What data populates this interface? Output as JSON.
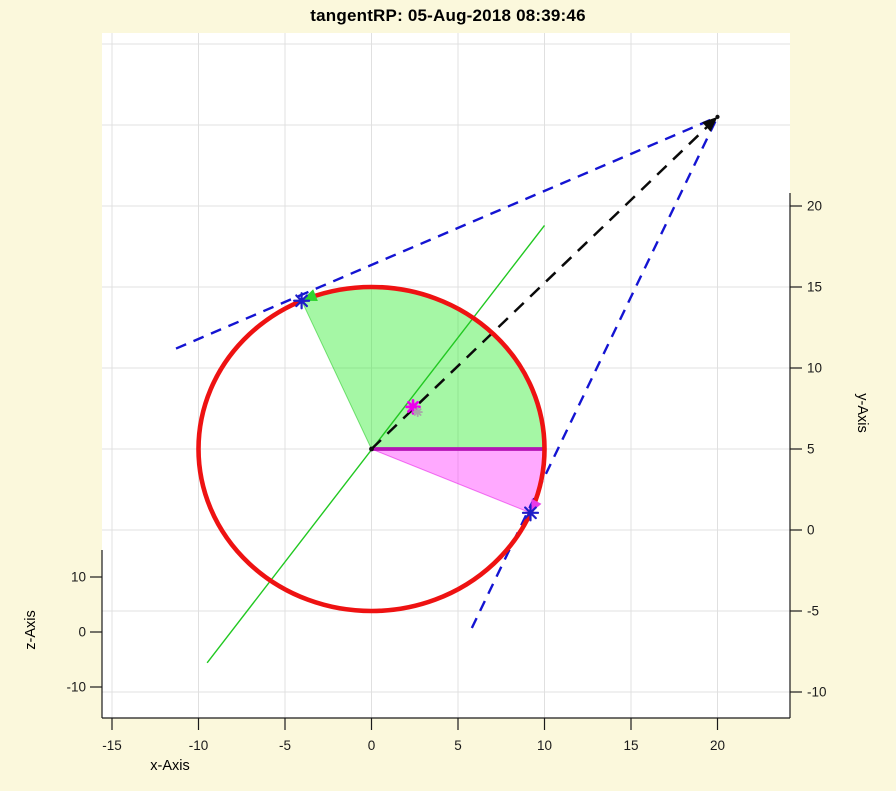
{
  "title": "tangentRP: 05-Aug-2018 08:39:46",
  "axis_labels": {
    "x": "x-Axis",
    "y": "y-Axis",
    "z": "z-Axis"
  },
  "colors": {
    "background": "#FBF8DC",
    "plot_bg": "#FFFFFF",
    "grid": "#E0E0E0",
    "axis": "#1A1A1A",
    "text": "#1A1A1A"
  },
  "chart_data": {
    "type": "line",
    "title": "tangentRP: 05-Aug-2018 08:39:46",
    "axes": {
      "x": {
        "label": "x-Axis",
        "tick_values": [
          -15,
          -10,
          -5,
          0,
          5,
          10,
          15,
          20
        ]
      },
      "y": {
        "label": "y-Axis",
        "tick_values": [
          -10,
          -5,
          0,
          5,
          10,
          15,
          20
        ],
        "grid_values": [
          -10,
          -5,
          0,
          5,
          10,
          15,
          20,
          25,
          30
        ]
      },
      "z": {
        "label": "z-Axis",
        "tick_values": [
          -10,
          0,
          10
        ]
      }
    },
    "circle": {
      "center": [
        0,
        5
      ],
      "radius": 10,
      "color": "#EE1212",
      "width": 4.6
    },
    "external_point": [
      20,
      25.5
    ],
    "tangent_points": [
      [
        -4.04,
        14.15
      ],
      [
        9.19,
        1.06
      ]
    ],
    "sectors": [
      {
        "name": "green-sector",
        "start_angle": 0,
        "end_angle": 113.8,
        "sweep": 0,
        "fill": "rgba(40,235,40,0.42)",
        "stroke": "rgba(30,200,30,0.55)"
      },
      {
        "name": "magenta-sector",
        "start_angle": 0,
        "end_angle": -23.2,
        "sweep": 1,
        "fill": "rgba(255,30,255,0.38)",
        "stroke": "rgba(230,20,230,0.55)"
      }
    ],
    "lines": [
      {
        "name": "green-diameter-line",
        "pts": [
          [
            -9.5,
            -8.2
          ],
          [
            10,
            18.8
          ]
        ],
        "color": "#21C821",
        "width": 1.4
      },
      {
        "name": "east-radius-line",
        "pts": [
          [
            0,
            5
          ],
          [
            10,
            5
          ]
        ],
        "color": "#B414B4",
        "width": 3.8
      },
      {
        "name": "tangent-line-upper",
        "pts": [
          [
            -11.3,
            11.2
          ],
          [
            20,
            25.5
          ]
        ],
        "color": "#1414D2",
        "width": 2.4,
        "dash": "11 8"
      },
      {
        "name": "tangent-line-lower",
        "pts": [
          [
            5.8,
            -6.05
          ],
          [
            20,
            25.5
          ]
        ],
        "color": "#1414D2",
        "width": 2.4,
        "dash": "11 8"
      },
      {
        "name": "center-to-external-line",
        "pts": [
          [
            0,
            5
          ],
          [
            20,
            25.5
          ]
        ],
        "color": "#0A0A0A",
        "width": 2.5,
        "dash": "13 9"
      }
    ],
    "arrows": [
      {
        "name": "green-arc-arrow",
        "tip": [
          -4.04,
          14.15
        ],
        "dir": [
          -0.918,
          -0.397
        ],
        "size": 15,
        "color": "#2FD42F"
      },
      {
        "name": "magenta-arc-arrow",
        "tip": [
          9.19,
          1.06
        ],
        "dir": [
          -0.446,
          -0.895
        ],
        "size": 13,
        "color": "#E83CE8"
      },
      {
        "name": "black-arrow",
        "tip": [
          20,
          25.5
        ],
        "dir": [
          0.72,
          0.695
        ],
        "size": 15,
        "color": "#0A0A0A"
      }
    ],
    "markers": [
      {
        "name": "tangent-point-1-asterisk",
        "pos": [
          -4.04,
          14.15
        ],
        "type": "asterisk",
        "r": 7.5,
        "w": 2.2,
        "color": "#1E1EC8"
      },
      {
        "name": "tangent-point-2-asterisk",
        "pos": [
          9.19,
          1.06
        ],
        "type": "asterisk",
        "r": 7.5,
        "w": 2.2,
        "color": "#1E1EC8"
      },
      {
        "name": "interior-magenta-asterisk",
        "pos": [
          2.4,
          7.6
        ],
        "type": "asterisk",
        "r": 6.5,
        "w": 2.7,
        "color": "#EE00EE"
      },
      {
        "name": "interior-gray-asterisk",
        "pos": [
          2.67,
          7.28
        ],
        "type": "asterisk",
        "r": 4.2,
        "w": 1.8,
        "color": "#A8A8A8"
      },
      {
        "name": "circle-center-dot",
        "pos": [
          0,
          5
        ],
        "type": "dot",
        "r": 2.4,
        "color": "#111111"
      },
      {
        "name": "external-point-dot",
        "pos": [
          20,
          25.5
        ],
        "type": "dot",
        "r": 2.1,
        "color": "#111111"
      }
    ]
  }
}
